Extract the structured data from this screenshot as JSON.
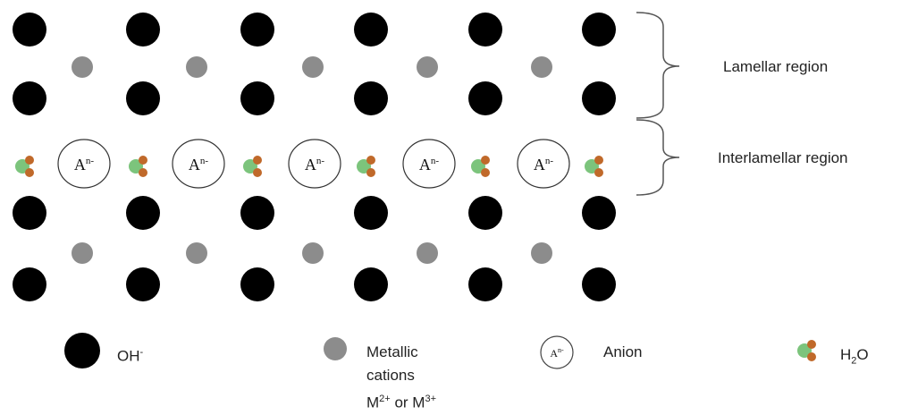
{
  "regions": {
    "lamellar": "Lamellar region",
    "interlamellar": "Interlamellar region"
  },
  "anion_symbol": {
    "base": "A",
    "superscript": "n-"
  },
  "legend": {
    "hydroxide": {
      "base": "OH",
      "superscript": "-"
    },
    "metal": {
      "line1": "Metallic",
      "line2": "cations",
      "line3_m1": "M",
      "line3_sup1": "2+",
      "line3_or": " or M",
      "line3_sup2": "3+"
    },
    "anion": {
      "label": "Anion",
      "icon_base": "A",
      "icon_superscript": "n-"
    },
    "water": {
      "base": "H",
      "subscript": "2",
      "tail": "O"
    }
  },
  "colors": {
    "hydroxide": "#000000",
    "metal_cation": "#8c8c8c",
    "water_oxygen": "#7cc47c",
    "water_hydrogen": "#c0692a",
    "bracket": "#555555"
  },
  "icons": {
    "hydroxide": "black-circle-icon",
    "metal_cation": "gray-circle-icon",
    "anion": "circled-anion-icon",
    "water": "water-molecule-icon",
    "bracket": "curly-brace-icon"
  }
}
